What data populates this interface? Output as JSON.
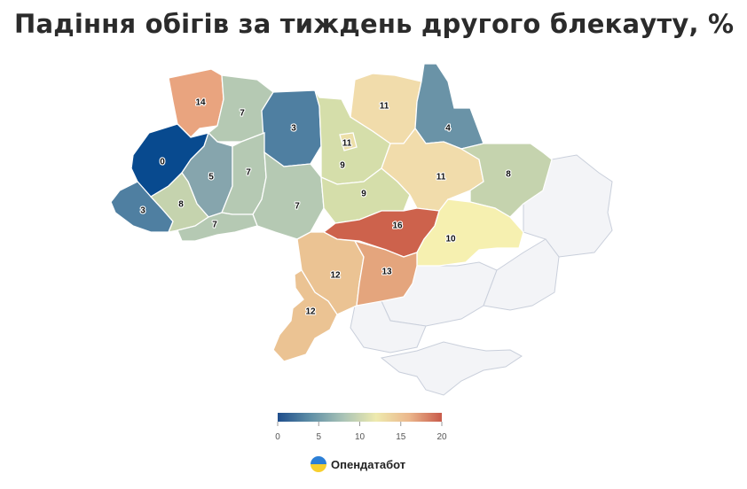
{
  "title": "Падіння обігів за тиждень другого блекауту, %",
  "brand": {
    "name": "Опендатабот",
    "icon": "opendatabot-logo-icon"
  },
  "legend": {
    "ticks": [
      "0",
      "5",
      "10",
      "15",
      "20"
    ],
    "colors": [
      "#1f4e8c",
      "#5f8fa6",
      "#a9c3b6",
      "#eeeaae",
      "#ebb78c",
      "#c85a4a"
    ]
  },
  "regions": [
    {
      "id": "volyn",
      "value": "14",
      "color": "#e9a47f"
    },
    {
      "id": "rivne",
      "value": "7",
      "color": "#b5c9b3"
    },
    {
      "id": "zhytomyr",
      "value": "3",
      "color": "#4f7fa1"
    },
    {
      "id": "kyiv-city",
      "value": "11",
      "color": "#ecdfa8"
    },
    {
      "id": "kyiv",
      "value": "9",
      "color": "#d5deaa"
    },
    {
      "id": "chernihiv",
      "value": "11",
      "color": "#f1dcab"
    },
    {
      "id": "sumy",
      "value": "4",
      "color": "#6a93a7"
    },
    {
      "id": "lviv",
      "value": "0",
      "color": "#084a8f"
    },
    {
      "id": "ternopil",
      "value": "5",
      "color": "#86a5ad"
    },
    {
      "id": "khmelnytskyi",
      "value": "7",
      "color": "#b5c9b3"
    },
    {
      "id": "poltava",
      "value": "11",
      "color": "#f1dcab"
    },
    {
      "id": "kharkiv",
      "value": "8",
      "color": "#c5d3ae"
    },
    {
      "id": "zakarpattia",
      "value": "3",
      "color": "#4f7fa1"
    },
    {
      "id": "ivano-frankivsk",
      "value": "8",
      "color": "#c5d3ae"
    },
    {
      "id": "chernivtsi",
      "value": "7",
      "color": "#b5c9b3"
    },
    {
      "id": "vinnytsia",
      "value": "7",
      "color": "#b5c9b3"
    },
    {
      "id": "cherkasy",
      "value": "9",
      "color": "#d5deaa"
    },
    {
      "id": "dnipropetrovsk",
      "value": "16",
      "color": "#cd624c"
    },
    {
      "id": "donetsk",
      "value": "10",
      "color": "#f6f0b0"
    },
    {
      "id": "kirovohrad",
      "value": "12",
      "color": "#ebc393"
    },
    {
      "id": "mykolaiv",
      "value": "13",
      "color": "#e4a57d"
    },
    {
      "id": "odesa",
      "value": "12",
      "color": "#ebc393"
    }
  ]
}
